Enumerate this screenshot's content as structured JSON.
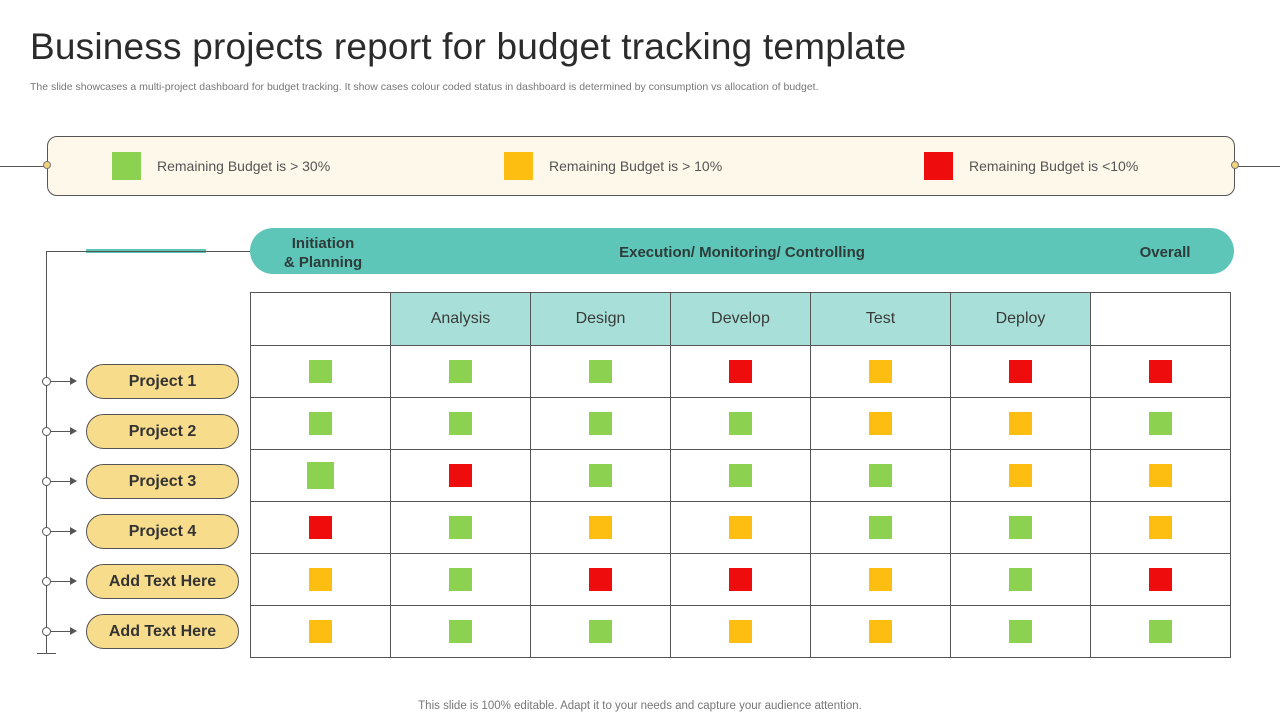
{
  "title": "Business projects report for budget tracking template",
  "subtitle": "The slide showcases a multi-project dashboard for budget tracking. It show cases colour coded status in dashboard is determined by consumption vs allocation of budget.",
  "colors": {
    "green": "#8cd150",
    "yellow": "#fdbd11",
    "red": "#ef0c0c",
    "teal": "#5ec6b9",
    "teal_light": "#a8e0d9",
    "pill": "#f7dc8c",
    "legend_bg": "#fdf8e9"
  },
  "legend": [
    {
      "label": "Remaining Budget is > 30%",
      "status": "green"
    },
    {
      "label": "Remaining Budget is > 10%",
      "status": "yellow"
    },
    {
      "label": "Remaining Budget is <10%",
      "status": "red"
    }
  ],
  "phases": {
    "initiation": "Initiation\n& Planning",
    "execution": "Execution/ Monitoring/ Controlling",
    "overall": "Overall"
  },
  "stages": [
    "Analysis",
    "Design",
    "Develop",
    "Test",
    "Deploy"
  ],
  "projects": [
    {
      "name": "Project 1",
      "status": [
        "green",
        "green",
        "green",
        "red",
        "yellow",
        "red",
        "red"
      ]
    },
    {
      "name": "Project 2",
      "status": [
        "green",
        "green",
        "green",
        "green",
        "yellow",
        "yellow",
        "green"
      ]
    },
    {
      "name": "Project 3",
      "status": [
        "green",
        "red",
        "green",
        "green",
        "green",
        "yellow",
        "yellow"
      ]
    },
    {
      "name": "Project 4",
      "status": [
        "red",
        "green",
        "yellow",
        "yellow",
        "green",
        "green",
        "yellow"
      ]
    },
    {
      "name": "Add Text Here",
      "status": [
        "yellow",
        "green",
        "red",
        "red",
        "yellow",
        "green",
        "red"
      ]
    },
    {
      "name": "Add Text Here",
      "status": [
        "yellow",
        "green",
        "green",
        "yellow",
        "yellow",
        "green",
        "green"
      ]
    }
  ],
  "footer": "This slide is 100% editable. Adapt it to your needs and capture your audience attention."
}
